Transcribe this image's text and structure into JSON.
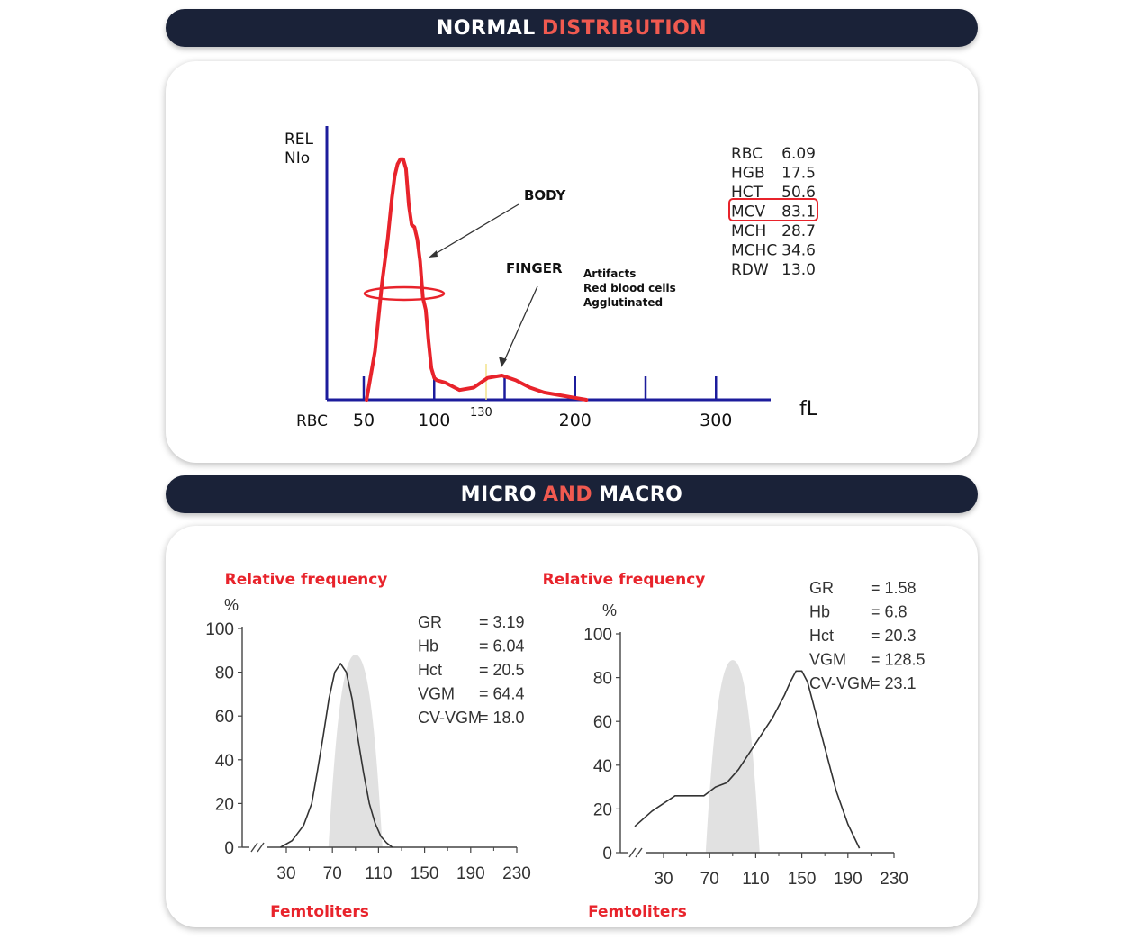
{
  "banners": {
    "top": {
      "word1": "NORMAL",
      "word2": "DISTRIBUTION",
      "accent": "#f05a50"
    },
    "bottom": {
      "word1": "MICRO",
      "word2": "AND",
      "word3": "MACRO"
    }
  },
  "chart_data": [
    {
      "type": "line",
      "title": "",
      "ylabel_lines": [
        "REL",
        "NIo"
      ],
      "xlabel": "fL",
      "x_prefix_label": "RBC",
      "x_ticks": [
        "50",
        "100",
        "200",
        "300"
      ],
      "x_marker_label": "130",
      "xlim": [
        30,
        330
      ],
      "ylim": [
        0,
        100
      ],
      "series": [
        {
          "color": "#e8232b",
          "x": [
            52,
            58,
            63,
            67,
            70,
            72,
            74,
            76,
            78,
            80,
            82,
            84,
            86,
            88,
            90,
            92,
            94,
            96,
            98,
            100,
            102,
            108,
            118,
            128,
            138,
            148,
            158,
            168,
            178,
            188,
            198,
            208
          ],
          "y": [
            0,
            20,
            48,
            66,
            83,
            92,
            97,
            99,
            99,
            95,
            80,
            72,
            71,
            66,
            57,
            42,
            37,
            24,
            13,
            9,
            8,
            7,
            4,
            5,
            9,
            10,
            8,
            5,
            3,
            2,
            1,
            0
          ]
        }
      ],
      "annotations": {
        "body": "BODY",
        "finger": "FINGER",
        "artifacts": [
          "Artifacts",
          "Red blood cells",
          "Agglutinated"
        ]
      },
      "indices": [
        {
          "label": "RBC",
          "value": "6.09"
        },
        {
          "label": "HGB",
          "value": "17.5"
        },
        {
          "label": "HCT",
          "value": "50.6"
        },
        {
          "label": "MCV",
          "value": "83.1"
        },
        {
          "label": "MCH",
          "value": "28.7"
        },
        {
          "label": "MCHC",
          "value": "34.6"
        },
        {
          "label": "RDW",
          "value": "13.0"
        }
      ],
      "highlighted_index": "MCV",
      "highlight_color": "#e8232b"
    },
    {
      "type": "line",
      "title": "Relative frequency",
      "y_unit": "%",
      "xlabel": "Femtoliters",
      "x_ticks": [
        30,
        70,
        110,
        150,
        190,
        230
      ],
      "y_ticks": [
        0,
        20,
        40,
        60,
        80,
        100
      ],
      "xlim": [
        0,
        230
      ],
      "ylim": [
        0,
        100
      ],
      "series": [
        {
          "x": [
            25,
            35,
            45,
            52,
            57,
            62,
            67,
            72,
            77,
            82,
            87,
            92,
            97,
            102,
            107,
            112,
            117,
            122
          ],
          "y": [
            0,
            3,
            10,
            20,
            35,
            51,
            68,
            80,
            84,
            80,
            68,
            50,
            34,
            20,
            11,
            5,
            2,
            0
          ]
        }
      ],
      "reference_distribution_color": "#c8c8c8",
      "indices": [
        {
          "label": "GR",
          "value": "= 3.19"
        },
        {
          "label": "Hb",
          "value": "= 6.04"
        },
        {
          "label": "Hct",
          "value": "= 20.5"
        },
        {
          "label": "VGM",
          "value": "= 64.4"
        },
        {
          "label": "CV-VGM",
          "value": "= 18.0"
        }
      ]
    },
    {
      "type": "line",
      "title": "Relative frequency",
      "y_unit": "%",
      "xlabel": "Femtoliters",
      "x_ticks": [
        30,
        70,
        110,
        150,
        190,
        230
      ],
      "y_ticks": [
        0,
        20,
        40,
        60,
        80,
        100
      ],
      "xlim": [
        0,
        230
      ],
      "ylim": [
        0,
        100
      ],
      "series": [
        {
          "x": [
            5,
            20,
            40,
            60,
            65,
            70,
            75,
            85,
            95,
            105,
            115,
            125,
            135,
            140,
            145,
            150,
            155,
            160,
            170,
            180,
            190,
            200
          ],
          "y": [
            12,
            19,
            26,
            26,
            26,
            28,
            30,
            32,
            38,
            46,
            54,
            62,
            72,
            78,
            83,
            83,
            78,
            68,
            48,
            28,
            13,
            2
          ]
        }
      ],
      "reference_distribution_color": "#c8c8c8",
      "indices": [
        {
          "label": "GR",
          "value": "= 1.58"
        },
        {
          "label": "Hb",
          "value": "= 6.8"
        },
        {
          "label": "Hct",
          "value": "= 20.3"
        },
        {
          "label": "VGM",
          "value": "= 128.5"
        },
        {
          "label": "CV-VGM",
          "value": "= 23.1"
        }
      ]
    }
  ]
}
